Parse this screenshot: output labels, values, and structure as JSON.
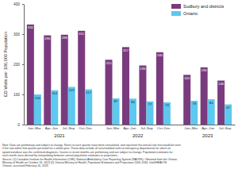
{
  "chart_data": {
    "type": "bar",
    "y_label": "ED Visits per 100,000 Population",
    "categories": [
      "Jan–Mar",
      "Apr–Jun",
      "Jul–Sep",
      "Oct–Dec",
      "Jan–Mar",
      "Apr–Jun",
      "Jul–Sep",
      "Oct–Dec",
      "Jan–Mar",
      "Apr–Jun",
      "Jul–Sep"
    ],
    "x_groups": [
      {
        "label": "2021",
        "span": 4
      },
      {
        "label": "2022",
        "span": 4
      },
      {
        "label": "2023",
        "span": 3
      }
    ],
    "series": [
      {
        "name": "Sudbury and districts",
        "color": "#7a3b7e",
        "values": [
          332,
          296,
          298,
          311,
          215,
          257,
          196,
          240,
          165,
          190,
          146
        ]
      },
      {
        "name": "Ontario",
        "color": "#5ec8ef",
        "values": [
          100,
          114,
          125,
          117,
          87,
          86,
          77,
          74,
          79,
          84,
          67
        ]
      }
    ],
    "ylim": [
      0,
      400
    ],
    "yticks": [
      0,
      100,
      200,
      300,
      400
    ],
    "grid": false,
    "legend": "top-right",
    "data_labels": true,
    "notes": [
      "Note: Data are preliminary and subject to change. Rates in each quarter have been annualized, and represent the annual rate that would be seen",
      "if the rate within that quarter persisted for a whole year. These data include all unscheduled visits to emergency departments for which an",
      "opioid overdose was the confirmed diagnosis. Counts in recent months are preliminary and are subject to change. Population estimates for",
      "each month were derived by interpolating between annual population estimates or projections.",
      "Source: (1) Canadian Institute for Health Information (CIHI), National Ambulatory Care Reporting System (NACRS). Obtained from the Ontario",
      "Ministry of Health on October 16, 2023 (2) Ontario Ministry of Health, Population Estimates and Projections 2005-2034, IntelliHEALTH",
      "Ontario, accessed February 10, 2023"
    ]
  }
}
